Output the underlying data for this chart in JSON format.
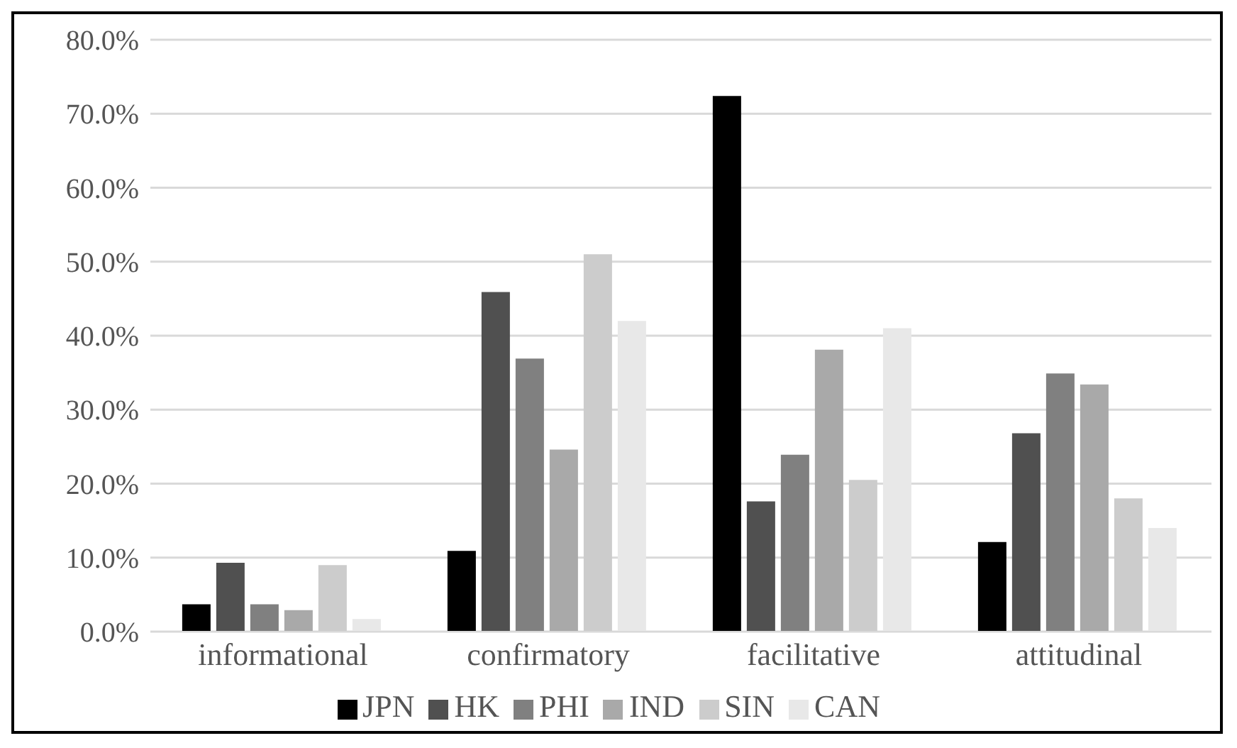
{
  "chart_data": {
    "type": "bar",
    "categories": [
      "informational",
      "confirmatory",
      "facilitative",
      "attitudinal"
    ],
    "series": [
      {
        "name": "JPN",
        "color": "#000000",
        "values": [
          3.7,
          10.9,
          72.4,
          12.1
        ]
      },
      {
        "name": "HK",
        "color": "#505050",
        "values": [
          9.3,
          45.9,
          17.6,
          26.8
        ]
      },
      {
        "name": "PHI",
        "color": "#808080",
        "values": [
          3.7,
          36.9,
          23.9,
          34.9
        ]
      },
      {
        "name": "IND",
        "color": "#a9a9a9",
        "values": [
          2.9,
          24.6,
          38.1,
          33.4
        ]
      },
      {
        "name": "SIN",
        "color": "#cccccc",
        "values": [
          9.0,
          51.0,
          20.5,
          18.0
        ]
      },
      {
        "name": "CAN",
        "color": "#e8e8e8",
        "values": [
          1.7,
          42.0,
          41.0,
          14.0
        ]
      }
    ],
    "ylim": [
      0,
      80
    ],
    "yticks": [
      {
        "value": 0,
        "label": "0.0%"
      },
      {
        "value": 10,
        "label": "10.0%"
      },
      {
        "value": 20,
        "label": "20.0%"
      },
      {
        "value": 30,
        "label": "30.0%"
      },
      {
        "value": 40,
        "label": "40.0%"
      },
      {
        "value": 50,
        "label": "50.0%"
      },
      {
        "value": 60,
        "label": "60.0%"
      },
      {
        "value": 70,
        "label": "70.0%"
      },
      {
        "value": 80,
        "label": "80.0%"
      }
    ],
    "grid": "y",
    "legend": "bottom"
  }
}
